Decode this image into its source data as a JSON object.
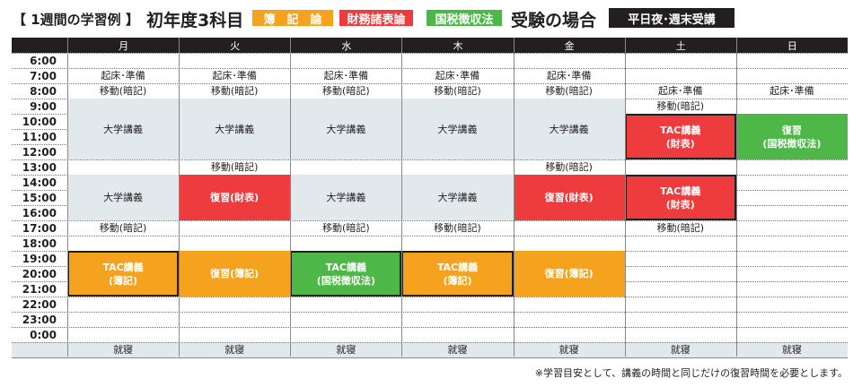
{
  "title": {
    "prefix": "【 1週間の学習例 】",
    "main": "初年度3科目",
    "subjects": [
      {
        "label": "簿　記　論",
        "color": "#f5a31f"
      },
      {
        "label": "財務諸表論",
        "color": "#ee3b3d"
      },
      {
        "label": "国税徴収法",
        "color": "#4db848"
      }
    ],
    "suffix": "受験の場合",
    "badge": "平日夜･週末受講"
  },
  "colors": {
    "gray": "#e2e9ed",
    "orange": "#f5a31f",
    "red": "#ee3b3d",
    "green": "#4db848",
    "header": "#231f20"
  },
  "days": [
    "月",
    "火",
    "水",
    "木",
    "金",
    "土",
    "日"
  ],
  "times": [
    "6:00",
    "7:00",
    "8:00",
    "9:00",
    "10:00",
    "11:00",
    "12:00",
    "13:00",
    "14:00",
    "15:00",
    "16:00",
    "17:00",
    "18:00",
    "19:00",
    "20:00",
    "21:00",
    "22:00",
    "23:00",
    "0:00"
  ],
  "sleep_label": "就寝",
  "events": [
    {
      "day": 0,
      "start": "7:00",
      "hours": 1,
      "label": "起床･準備",
      "style": "text"
    },
    {
      "day": 0,
      "start": "8:00",
      "hours": 1,
      "label": "移動(暗記)",
      "style": "text"
    },
    {
      "day": 0,
      "start": "9:00",
      "hours": 4,
      "label": "大学講義",
      "style": "gray"
    },
    {
      "day": 0,
      "start": "14:00",
      "hours": 3,
      "label": "大学講義",
      "style": "gray"
    },
    {
      "day": 0,
      "start": "17:00",
      "hours": 1,
      "label": "移動(暗記)",
      "style": "text"
    },
    {
      "day": 0,
      "start": "19:00",
      "hours": 3,
      "label": "TAC講義\n(簿記)",
      "style": "orange",
      "bordered": true
    },
    {
      "day": 1,
      "start": "7:00",
      "hours": 1,
      "label": "起床･準備",
      "style": "text"
    },
    {
      "day": 1,
      "start": "8:00",
      "hours": 1,
      "label": "移動(暗記)",
      "style": "text"
    },
    {
      "day": 1,
      "start": "9:00",
      "hours": 4,
      "label": "大学講義",
      "style": "gray"
    },
    {
      "day": 1,
      "start": "13:00",
      "hours": 1,
      "label": "移動(暗記)",
      "style": "text"
    },
    {
      "day": 1,
      "start": "14:00",
      "hours": 3,
      "label": "復習(財表)",
      "style": "red"
    },
    {
      "day": 1,
      "start": "19:00",
      "hours": 3,
      "label": "復習(簿記)",
      "style": "orange"
    },
    {
      "day": 2,
      "start": "7:00",
      "hours": 1,
      "label": "起床･準備",
      "style": "text"
    },
    {
      "day": 2,
      "start": "8:00",
      "hours": 1,
      "label": "移動(暗記)",
      "style": "text"
    },
    {
      "day": 2,
      "start": "9:00",
      "hours": 4,
      "label": "大学講義",
      "style": "gray"
    },
    {
      "day": 2,
      "start": "14:00",
      "hours": 3,
      "label": "大学講義",
      "style": "gray"
    },
    {
      "day": 2,
      "start": "17:00",
      "hours": 1,
      "label": "移動(暗記)",
      "style": "text"
    },
    {
      "day": 2,
      "start": "19:00",
      "hours": 3,
      "label": "TAC講義\n(国税徴収法)",
      "style": "green",
      "bordered": true
    },
    {
      "day": 3,
      "start": "7:00",
      "hours": 1,
      "label": "起床･準備",
      "style": "text"
    },
    {
      "day": 3,
      "start": "8:00",
      "hours": 1,
      "label": "移動(暗記)",
      "style": "text"
    },
    {
      "day": 3,
      "start": "9:00",
      "hours": 4,
      "label": "大学講義",
      "style": "gray"
    },
    {
      "day": 3,
      "start": "14:00",
      "hours": 3,
      "label": "大学講義",
      "style": "gray"
    },
    {
      "day": 3,
      "start": "17:00",
      "hours": 1,
      "label": "移動(暗記)",
      "style": "text"
    },
    {
      "day": 3,
      "start": "19:00",
      "hours": 3,
      "label": "TAC講義\n(簿記)",
      "style": "orange",
      "bordered": true
    },
    {
      "day": 4,
      "start": "7:00",
      "hours": 1,
      "label": "起床･準備",
      "style": "text"
    },
    {
      "day": 4,
      "start": "8:00",
      "hours": 1,
      "label": "移動(暗記)",
      "style": "text"
    },
    {
      "day": 4,
      "start": "9:00",
      "hours": 4,
      "label": "大学講義",
      "style": "gray"
    },
    {
      "day": 4,
      "start": "13:00",
      "hours": 1,
      "label": "移動(暗記)",
      "style": "text"
    },
    {
      "day": 4,
      "start": "14:00",
      "hours": 3,
      "label": "復習(財表)",
      "style": "red"
    },
    {
      "day": 4,
      "start": "19:00",
      "hours": 3,
      "label": "復習(簿記)",
      "style": "orange"
    },
    {
      "day": 5,
      "start": "8:00",
      "hours": 1,
      "label": "起床･準備",
      "style": "text"
    },
    {
      "day": 5,
      "start": "9:00",
      "hours": 1,
      "label": "移動(暗記)",
      "style": "text"
    },
    {
      "day": 5,
      "start": "10:00",
      "hours": 3,
      "label": "TAC講義\n(財表)",
      "style": "red",
      "bordered": true
    },
    {
      "day": 5,
      "start": "14:00",
      "hours": 3,
      "label": "TAC講義\n(財表)",
      "style": "red",
      "bordered": true
    },
    {
      "day": 5,
      "start": "17:00",
      "hours": 1,
      "label": "移動(暗記)",
      "style": "text"
    },
    {
      "day": 6,
      "start": "8:00",
      "hours": 1,
      "label": "起床･準備",
      "style": "text"
    },
    {
      "day": 6,
      "start": "10:00",
      "hours": 3,
      "label": "復習\n(国税徴収法)",
      "style": "green"
    }
  ],
  "note": "※学習目安として、講義の時間と同じだけの復習時間を必要とします。"
}
